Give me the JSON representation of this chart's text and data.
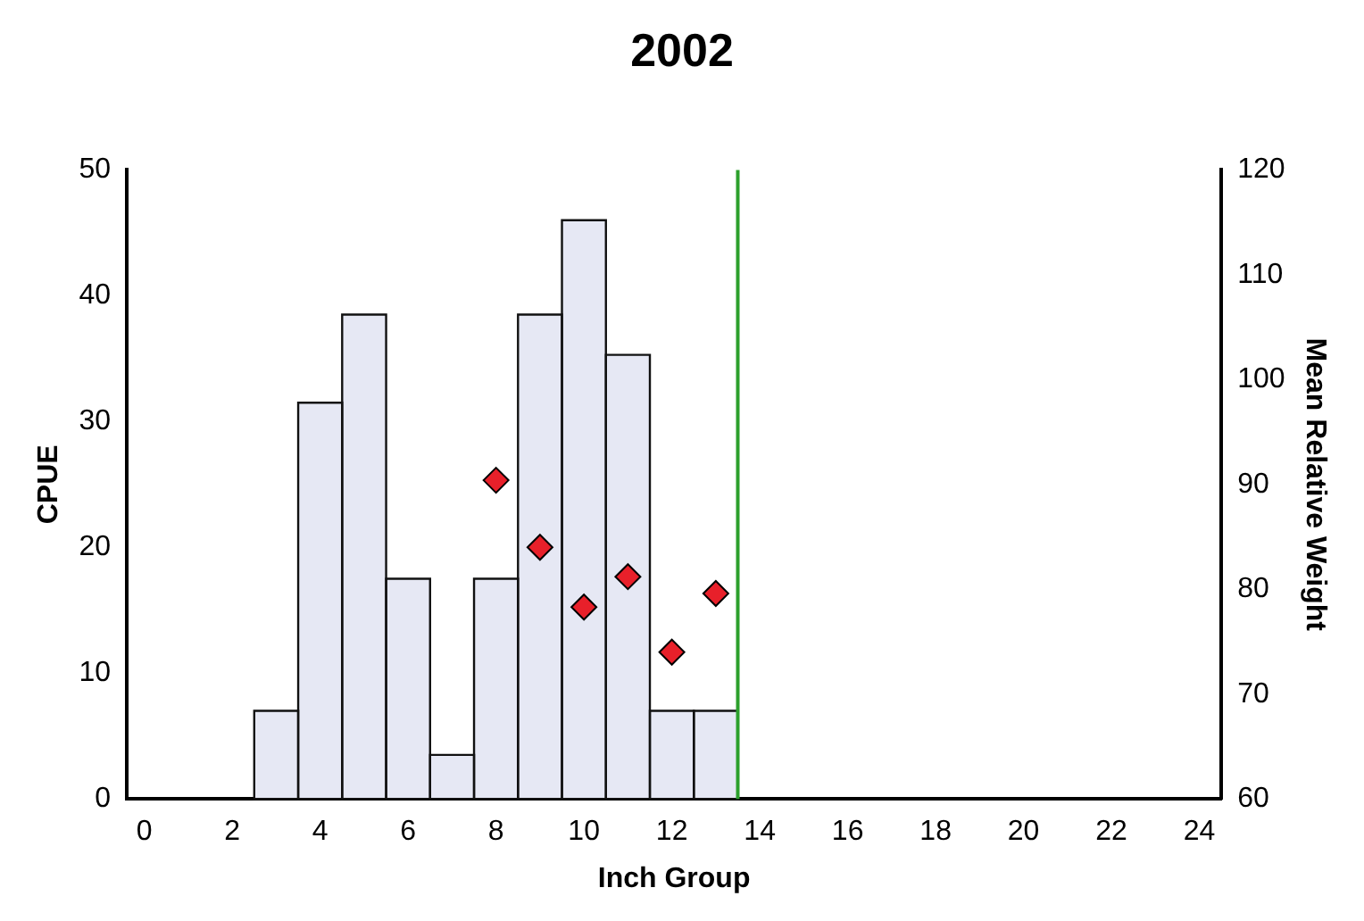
{
  "chart_data": {
    "type": "bar",
    "title": "2002",
    "xlabel": "Inch Group",
    "ylabel": "CPUE",
    "y2label": "Mean Relative Weight",
    "x": [
      3,
      4,
      5,
      6,
      7,
      8,
      9,
      10,
      11,
      12,
      13
    ],
    "series": [
      {
        "color": "#e6e8f4",
        "values": [
          7,
          31.5,
          38.5,
          17.5,
          3.5,
          17.5,
          38.5,
          46,
          35.3,
          7,
          7
        ]
      },
      {
        "type": "scatter",
        "axis": "y2",
        "color": "#e8202a",
        "x": [
          8,
          9,
          10,
          11,
          12,
          13
        ],
        "values": [
          90.4,
          84,
          78.3,
          81.2,
          74,
          79.6
        ]
      }
    ],
    "xlim": [
      -0.4,
      24.5
    ],
    "xticks": [
      0,
      2,
      4,
      6,
      8,
      10,
      12,
      14,
      16,
      18,
      20,
      22,
      24
    ],
    "ylim": [
      0,
      50
    ],
    "yticks": [
      0,
      10,
      20,
      30,
      40,
      50
    ],
    "y2lim": [
      60,
      120
    ],
    "y2ticks": [
      60,
      70,
      80,
      90,
      100,
      110,
      120
    ],
    "ref_lines": [
      {
        "axis": "x",
        "value": 13.5,
        "color": "#2ca02c"
      }
    ],
    "marker": "diamond",
    "grid": false,
    "legend": false
  }
}
